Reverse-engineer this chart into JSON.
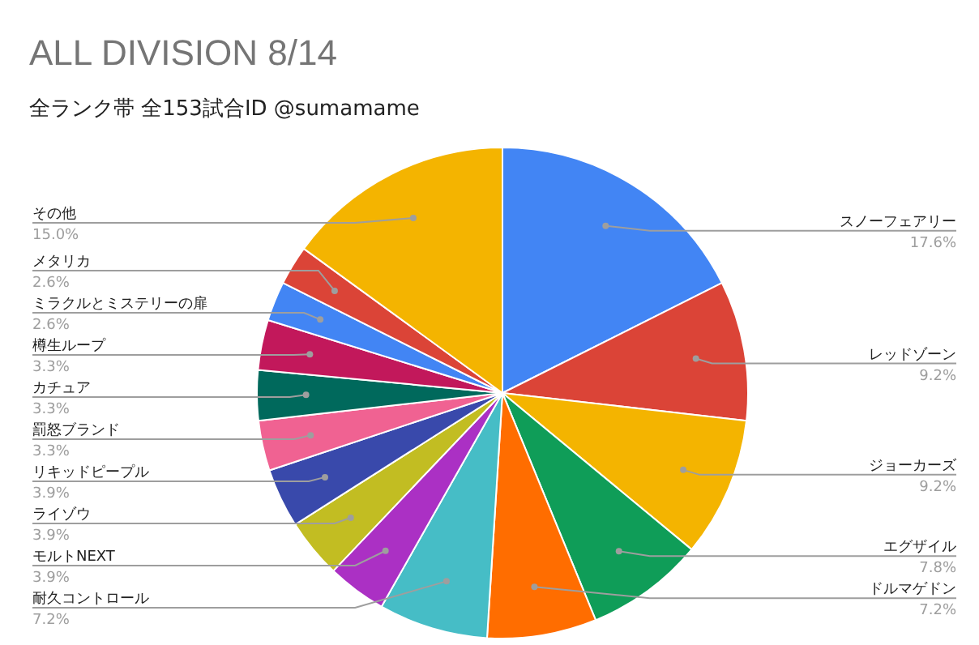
{
  "chart_data": {
    "type": "pie",
    "title": "ALL DIVISION 8/14",
    "subtitle": "全ランク帯 全153試合ID @sumamame",
    "categories": [
      "スノーフェアリー",
      "レッドゾーン",
      "ジョーカーズ",
      "エグザイル",
      "ドルマゲドン",
      "耐久コントロール",
      "モルトNEXT",
      "ライゾウ",
      "リキッドピープル",
      "罰怒ブランド",
      "カチュア",
      "樽生ループ",
      "ミラクルとミステリーの扉",
      "メタリカ",
      "その他"
    ],
    "values": [
      17.6,
      9.2,
      9.2,
      7.8,
      7.2,
      7.2,
      3.9,
      3.9,
      3.9,
      3.3,
      3.3,
      3.3,
      2.6,
      2.6,
      15.0
    ],
    "value_labels": [
      "17.6%",
      "9.2%",
      "9.2%",
      "7.8%",
      "7.2%",
      "7.2%",
      "3.9%",
      "3.9%",
      "3.9%",
      "3.3%",
      "3.3%",
      "3.3%",
      "2.6%",
      "2.6%",
      "15.0%"
    ],
    "colors": [
      "#4285f4",
      "#db4437",
      "#f4b400",
      "#0f9d58",
      "#ff6d00",
      "#46bdc6",
      "#ab30c4",
      "#c2bd22",
      "#3949ab",
      "#f06292",
      "#00695c",
      "#c2185b",
      "#4285f4",
      "#db4437",
      "#f4b400"
    ],
    "legend": false
  }
}
